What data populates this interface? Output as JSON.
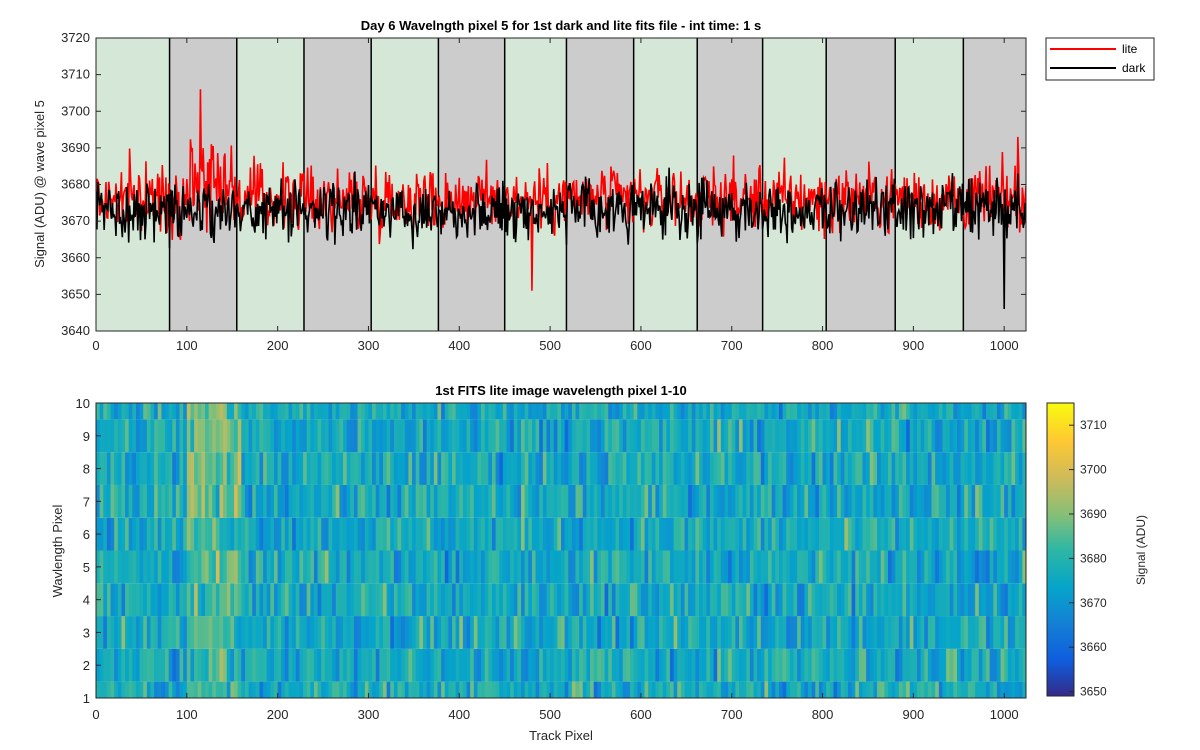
{
  "chart_data": [
    {
      "type": "line",
      "title": "Day 6 Wavelngth pixel 5 for 1st dark and lite fits file - int time: 1 s",
      "xlabel": "",
      "ylabel": "Signal (ADU) @ wave pixel 5",
      "xlim": [
        0,
        1024
      ],
      "ylim": [
        3640,
        3720
      ],
      "xticks": [
        0,
        100,
        200,
        300,
        400,
        500,
        600,
        700,
        800,
        900,
        1000
      ],
      "yticks": [
        3640,
        3650,
        3660,
        3670,
        3680,
        3690,
        3700,
        3710,
        3720
      ],
      "grid": false,
      "legend": "outside-top-right",
      "background_bands": {
        "boundaries": [
          0,
          81,
          155,
          229,
          303,
          377,
          450,
          518,
          592,
          662,
          734,
          804,
          880,
          955,
          1024
        ],
        "colors": [
          "#d5e8d8",
          "#cccccc"
        ]
      },
      "series": [
        {
          "name": "lite",
          "color": "#ff0000",
          "mean": 3676,
          "noise_amplitude": 8,
          "features": [
            {
              "x_range": [
                100,
                150
              ],
              "y_max": 3706
            },
            {
              "x": 480,
              "y_min": 3651
            },
            {
              "x": 1015,
              "y_max": 3693
            }
          ]
        },
        {
          "name": "dark",
          "color": "#000000",
          "mean": 3673,
          "noise_amplitude": 7,
          "features": [
            {
              "x": 1000,
              "y_min": 3646
            }
          ]
        }
      ]
    },
    {
      "type": "heatmap",
      "title": "1st FITS lite image wavelength pixel 1-10",
      "xlabel": "Track Pixel",
      "ylabel": "Wavlength Pixel",
      "xlim": [
        0,
        1024
      ],
      "ylim": [
        1,
        10
      ],
      "xticks": [
        0,
        100,
        200,
        300,
        400,
        500,
        600,
        700,
        800,
        900,
        1000
      ],
      "yticks": [
        1,
        2,
        3,
        4,
        5,
        6,
        7,
        8,
        9,
        10
      ],
      "rows": 10,
      "columns": 1024,
      "value_range": [
        3649,
        3715
      ],
      "colormap": "parula",
      "hot_region_x": [
        100,
        160
      ],
      "colorbar": {
        "label": "Signal (ADU)",
        "ticks": [
          3650,
          3660,
          3670,
          3680,
          3690,
          3700,
          3710
        ],
        "range": [
          3649,
          3715
        ]
      }
    }
  ]
}
